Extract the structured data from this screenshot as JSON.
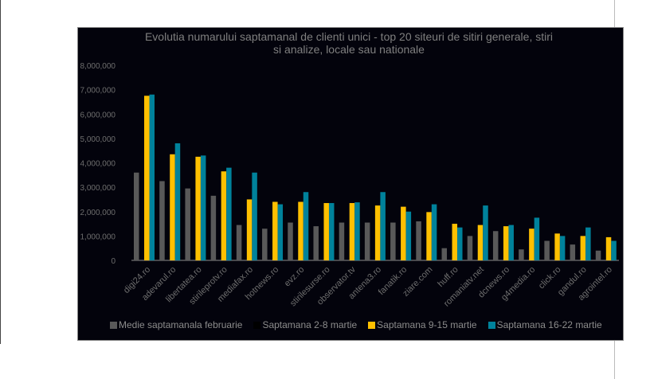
{
  "chart_data": {
    "type": "bar",
    "title": "Evolutia numarului  saptamanal de clienti unici - top 20 siteuri de sitiri generale, stiri si analize, locale sau nationale",
    "title_lines": [
      "Evolutia numarului  saptamanal de clienti unici - top 20 siteuri de sitiri generale, stiri",
      "si analize, locale sau nationale"
    ],
    "xlabel": "",
    "ylabel": "",
    "ylim": [
      0,
      8000000
    ],
    "yticks": [
      "0",
      "1,000,000",
      "2,000,000",
      "3,000,000",
      "4,000,000",
      "5,000,000",
      "6,000,000",
      "7,000,000",
      "8,000,000"
    ],
    "grid": false,
    "legend_position": "bottom",
    "categories": [
      "digi24.ro",
      "adevarul.ro",
      "libertatea.ro",
      "stirileprotv.ro",
      "mediafax.ro",
      "hotnews.ro",
      "evz.ro",
      "stirilesurse.ro",
      "observator.tv",
      "antena3.ro",
      "fanatik.ro",
      "ziare.com",
      "huff.ro",
      "romaniatv.net",
      "dcnews.ro",
      "g4media.ro",
      "click.ro",
      "gandul.ro",
      "agrointel.ro"
    ],
    "series": [
      {
        "name": "Medie saptamanala februarie",
        "color": "#595959",
        "values": [
          3600000,
          3250000,
          2950000,
          2650000,
          1450000,
          1300000,
          1550000,
          1400000,
          1550000,
          1550000,
          1550000,
          1600000,
          500000,
          1000000,
          1200000,
          450000,
          800000,
          650000,
          400000
        ]
      },
      {
        "name": "Saptamana 2-8 martie",
        "color": "#000000",
        "values": [
          null,
          null,
          null,
          null,
          null,
          null,
          null,
          null,
          null,
          null,
          null,
          null,
          null,
          null,
          null,
          null,
          null,
          null,
          null
        ]
      },
      {
        "name": "Saptamana 9-15 martie",
        "color": "#ffc000",
        "values": [
          6750000,
          4350000,
          4250000,
          3650000,
          2500000,
          2400000,
          2400000,
          2350000,
          2350000,
          2250000,
          2200000,
          1980000,
          1500000,
          1450000,
          1400000,
          1300000,
          1100000,
          1000000,
          950000
        ]
      },
      {
        "name": "Saptamana 16-22 martie",
        "color": "#00829b",
        "values": [
          6800000,
          4800000,
          4300000,
          3800000,
          3600000,
          2300000,
          2800000,
          2350000,
          2380000,
          2800000,
          2000000,
          2300000,
          1350000,
          2250000,
          1450000,
          1750000,
          1000000,
          1350000,
          800000
        ]
      }
    ]
  }
}
